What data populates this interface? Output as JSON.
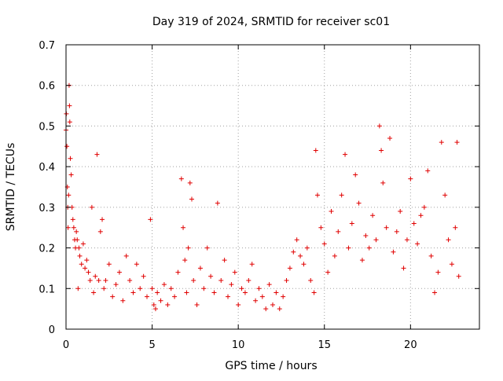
{
  "chart_data": {
    "type": "scatter",
    "title": "Day 319 of 2024, SRMTID for receiver sc01",
    "xlabel": "GPS time / hours",
    "ylabel": "SRMTID / TECUs",
    "xlim": [
      0,
      24
    ],
    "ylim": [
      0,
      0.7
    ],
    "xticks": [
      0,
      5,
      10,
      15,
      20
    ],
    "yticks": [
      0,
      0.1,
      0.2,
      0.3,
      0.4,
      0.5,
      0.6,
      0.7
    ],
    "grid": true,
    "marker": "+",
    "color": "#e00000",
    "series": [
      {
        "name": "sc01",
        "points": [
          [
            0.0,
            0.49
          ],
          [
            0.02,
            0.53
          ],
          [
            0.05,
            0.45
          ],
          [
            0.08,
            0.35
          ],
          [
            0.1,
            0.3
          ],
          [
            0.12,
            0.25
          ],
          [
            0.15,
            0.33
          ],
          [
            0.18,
            0.6
          ],
          [
            0.2,
            0.55
          ],
          [
            0.22,
            0.51
          ],
          [
            0.25,
            0.42
          ],
          [
            0.3,
            0.38
          ],
          [
            0.35,
            0.3
          ],
          [
            0.4,
            0.27
          ],
          [
            0.45,
            0.25
          ],
          [
            0.5,
            0.22
          ],
          [
            0.55,
            0.2
          ],
          [
            0.6,
            0.24
          ],
          [
            0.65,
            0.22
          ],
          [
            0.7,
            0.1
          ],
          [
            0.75,
            0.2
          ],
          [
            0.8,
            0.18
          ],
          [
            0.9,
            0.16
          ],
          [
            1.0,
            0.21
          ],
          [
            1.1,
            0.15
          ],
          [
            1.2,
            0.17
          ],
          [
            1.3,
            0.14
          ],
          [
            1.4,
            0.12
          ],
          [
            1.5,
            0.3
          ],
          [
            1.6,
            0.09
          ],
          [
            1.7,
            0.13
          ],
          [
            1.8,
            0.43
          ],
          [
            1.9,
            0.12
          ],
          [
            2.0,
            0.24
          ],
          [
            2.1,
            0.27
          ],
          [
            2.2,
            0.1
          ],
          [
            2.3,
            0.12
          ],
          [
            2.5,
            0.16
          ],
          [
            2.7,
            0.08
          ],
          [
            2.9,
            0.11
          ],
          [
            3.1,
            0.14
          ],
          [
            3.3,
            0.07
          ],
          [
            3.5,
            0.18
          ],
          [
            3.7,
            0.12
          ],
          [
            3.9,
            0.09
          ],
          [
            4.1,
            0.16
          ],
          [
            4.3,
            0.1
          ],
          [
            4.5,
            0.13
          ],
          [
            4.7,
            0.08
          ],
          [
            4.9,
            0.27
          ],
          [
            5.0,
            0.1
          ],
          [
            5.1,
            0.06
          ],
          [
            5.2,
            0.05
          ],
          [
            5.3,
            0.09
          ],
          [
            5.5,
            0.07
          ],
          [
            5.7,
            0.11
          ],
          [
            5.9,
            0.06
          ],
          [
            6.1,
            0.1
          ],
          [
            6.3,
            0.08
          ],
          [
            6.5,
            0.14
          ],
          [
            6.7,
            0.37
          ],
          [
            6.8,
            0.25
          ],
          [
            6.9,
            0.17
          ],
          [
            7.0,
            0.09
          ],
          [
            7.1,
            0.2
          ],
          [
            7.2,
            0.36
          ],
          [
            7.3,
            0.32
          ],
          [
            7.4,
            0.12
          ],
          [
            7.6,
            0.06
          ],
          [
            7.8,
            0.15
          ],
          [
            8.0,
            0.1
          ],
          [
            8.2,
            0.2
          ],
          [
            8.4,
            0.13
          ],
          [
            8.6,
            0.09
          ],
          [
            8.8,
            0.31
          ],
          [
            9.0,
            0.12
          ],
          [
            9.2,
            0.17
          ],
          [
            9.4,
            0.08
          ],
          [
            9.6,
            0.11
          ],
          [
            9.8,
            0.14
          ],
          [
            10.0,
            0.06
          ],
          [
            10.2,
            0.1
          ],
          [
            10.4,
            0.09
          ],
          [
            10.6,
            0.12
          ],
          [
            10.8,
            0.16
          ],
          [
            11.0,
            0.07
          ],
          [
            11.2,
            0.1
          ],
          [
            11.4,
            0.08
          ],
          [
            11.6,
            0.05
          ],
          [
            11.8,
            0.11
          ],
          [
            12.0,
            0.06
          ],
          [
            12.2,
            0.09
          ],
          [
            12.4,
            0.05
          ],
          [
            12.6,
            0.08
          ],
          [
            12.8,
            0.12
          ],
          [
            13.0,
            0.15
          ],
          [
            13.2,
            0.19
          ],
          [
            13.4,
            0.22
          ],
          [
            13.6,
            0.18
          ],
          [
            13.8,
            0.16
          ],
          [
            14.0,
            0.2
          ],
          [
            14.2,
            0.12
          ],
          [
            14.4,
            0.09
          ],
          [
            14.5,
            0.44
          ],
          [
            14.6,
            0.33
          ],
          [
            14.8,
            0.25
          ],
          [
            15.0,
            0.21
          ],
          [
            15.2,
            0.14
          ],
          [
            15.4,
            0.29
          ],
          [
            15.6,
            0.18
          ],
          [
            15.8,
            0.24
          ],
          [
            16.0,
            0.33
          ],
          [
            16.2,
            0.43
          ],
          [
            16.4,
            0.2
          ],
          [
            16.6,
            0.26
          ],
          [
            16.8,
            0.38
          ],
          [
            17.0,
            0.31
          ],
          [
            17.2,
            0.17
          ],
          [
            17.4,
            0.23
          ],
          [
            17.6,
            0.2
          ],
          [
            17.8,
            0.28
          ],
          [
            18.0,
            0.22
          ],
          [
            18.2,
            0.5
          ],
          [
            18.3,
            0.44
          ],
          [
            18.4,
            0.36
          ],
          [
            18.6,
            0.25
          ],
          [
            18.8,
            0.47
          ],
          [
            19.0,
            0.19
          ],
          [
            19.2,
            0.24
          ],
          [
            19.4,
            0.29
          ],
          [
            19.6,
            0.15
          ],
          [
            19.8,
            0.22
          ],
          [
            20.0,
            0.37
          ],
          [
            20.2,
            0.26
          ],
          [
            20.4,
            0.21
          ],
          [
            20.6,
            0.28
          ],
          [
            20.8,
            0.3
          ],
          [
            21.0,
            0.39
          ],
          [
            21.2,
            0.18
          ],
          [
            21.4,
            0.09
          ],
          [
            21.6,
            0.14
          ],
          [
            21.8,
            0.46
          ],
          [
            22.0,
            0.33
          ],
          [
            22.2,
            0.22
          ],
          [
            22.4,
            0.16
          ],
          [
            22.6,
            0.25
          ],
          [
            22.7,
            0.46
          ],
          [
            22.8,
            0.13
          ]
        ]
      }
    ]
  }
}
